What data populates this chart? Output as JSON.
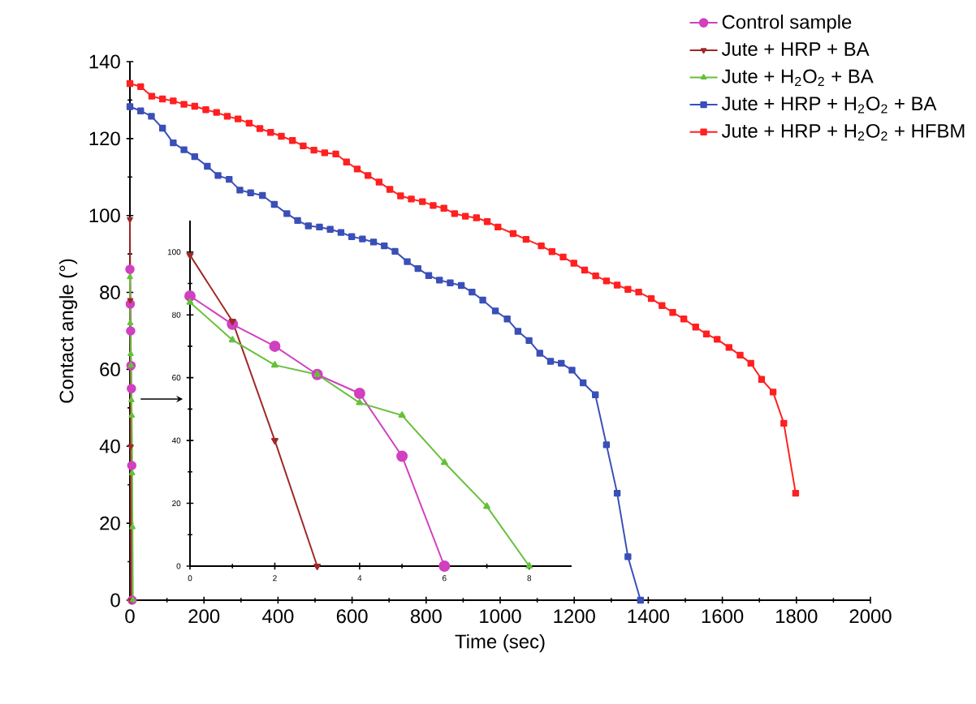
{
  "chart_data": [
    {
      "type": "line",
      "xlabel": "Time (sec)",
      "ylabel": "Contact angle (°)",
      "xlim": [
        0,
        2000
      ],
      "ylim": [
        0,
        140
      ],
      "xticks": [
        0,
        200,
        400,
        600,
        800,
        1000,
        1200,
        1400,
        1600,
        1800,
        2000
      ],
      "yticks": [
        0,
        20,
        40,
        60,
        80,
        100,
        120,
        140
      ],
      "legend": "top right",
      "grid": false,
      "series": [
        {
          "name": "Control sample",
          "color": "#d040c0",
          "marker": "circle",
          "x": [
            0,
            1,
            2,
            3,
            4,
            5,
            6
          ],
          "values": [
            86,
            77,
            70,
            61,
            55,
            35,
            0
          ]
        },
        {
          "name": "Jute + HRP + BA",
          "color": "#a02828",
          "marker": "triangle down",
          "x": [
            0,
            1,
            2,
            3
          ],
          "values": [
            99,
            78,
            40,
            0
          ]
        },
        {
          "name": "Jute + H$_{2}$O$_{2}$ + BA",
          "color": "#66c03a",
          "marker": "triangle",
          "x": [
            0,
            1,
            2,
            3,
            4,
            5,
            6,
            7,
            8
          ],
          "values": [
            84,
            72,
            64,
            61,
            52,
            48,
            33,
            19,
            0
          ]
        },
        {
          "name": "Jute + HRP + H$_{2}$O$_{2}$ + BA",
          "color": "#3a4fb8",
          "marker": "square",
          "x": [
            0,
            29,
            58,
            88,
            117,
            146,
            175,
            209,
            238,
            268,
            297,
            326,
            358,
            390,
            424,
            453,
            482,
            512,
            541,
            570,
            599,
            628,
            658,
            687,
            716,
            749,
            778,
            807,
            836,
            865,
            895,
            924,
            953,
            987,
            1019,
            1048,
            1078,
            1107,
            1136,
            1165,
            1194,
            1224,
            1257,
            1287,
            1316,
            1345,
            1379
          ],
          "values": [
            128.3,
            127.2,
            125.8,
            122.7,
            118.9,
            117.1,
            115.3,
            112.8,
            110.4,
            109.4,
            106.6,
            105.9,
            105.2,
            102.9,
            100.5,
            98.7,
            97.3,
            97.0,
            96.4,
            95.6,
            94.5,
            93.9,
            93.1,
            92.1,
            90.7,
            88.0,
            86.2,
            84.4,
            83.2,
            82.5,
            81.8,
            80.1,
            78.0,
            75.2,
            73.1,
            69.9,
            67.5,
            64.2,
            62.1,
            61.6,
            59.8,
            56.5,
            53.4,
            40.4,
            27.8,
            11.3,
            0
          ]
        },
        {
          "name": "Jute + HRP + H$_{2}$O$_{2}$ + HFBM",
          "color": "#ff2020",
          "marker": "square",
          "x": [
            0,
            29,
            59,
            88,
            117,
            146,
            175,
            205,
            234,
            263,
            292,
            322,
            351,
            380,
            409,
            439,
            468,
            497,
            526,
            556,
            585,
            614,
            643,
            673,
            702,
            731,
            760,
            790,
            819,
            848,
            877,
            906,
            936,
            965,
            994,
            1035,
            1070,
            1111,
            1140,
            1170,
            1199,
            1228,
            1258,
            1287,
            1316,
            1345,
            1374,
            1408,
            1437,
            1466,
            1496,
            1528,
            1557,
            1586,
            1618,
            1648,
            1677,
            1706,
            1737,
            1766,
            1798
          ],
          "values": [
            134.3,
            133.5,
            131.0,
            130.3,
            129.8,
            128.9,
            128.4,
            127.5,
            126.8,
            125.8,
            125.1,
            124.0,
            122.6,
            121.6,
            120.6,
            119.5,
            118.1,
            117.0,
            116.3,
            116.0,
            113.9,
            112.1,
            110.4,
            108.7,
            106.8,
            105.1,
            104.3,
            103.6,
            102.6,
            101.9,
            100.5,
            99.8,
            99.4,
            98.4,
            97.0,
            95.3,
            93.8,
            92.1,
            90.6,
            89.2,
            87.6,
            85.8,
            84.3,
            83.0,
            81.9,
            80.8,
            80.1,
            78.4,
            76.6,
            74.8,
            73.1,
            71.0,
            69.2,
            67.8,
            65.7,
            63.7,
            61.6,
            57.4,
            54.1,
            46.0,
            27.8
          ]
        }
      ]
    },
    {
      "type": "line",
      "xlim": [
        0,
        9
      ],
      "ylim": [
        0,
        110
      ],
      "xticks": [
        0,
        2,
        4,
        6,
        8
      ],
      "yticks": [
        0,
        20,
        40,
        60,
        80,
        100
      ],
      "legend": false,
      "grid": false,
      "series": [
        {
          "color": "#d040c0",
          "marker": "circle",
          "x": [
            0,
            1,
            2,
            3,
            4,
            5,
            6
          ],
          "values": [
            86,
            77,
            70,
            61,
            55,
            35,
            0
          ]
        },
        {
          "color": "#a02828",
          "marker": "triangle down",
          "x": [
            0,
            1,
            2,
            3
          ],
          "values": [
            99,
            78,
            40,
            0
          ]
        },
        {
          "color": "#66c03a",
          "marker": "triangle",
          "x": [
            0,
            1,
            2,
            3,
            4,
            5,
            6,
            7,
            8
          ],
          "values": [
            84,
            72,
            64,
            61,
            52,
            48,
            33,
            19,
            0
          ]
        }
      ]
    }
  ]
}
